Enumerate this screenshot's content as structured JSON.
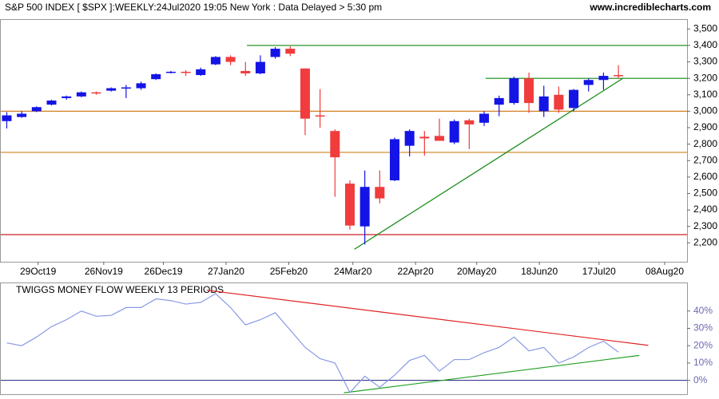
{
  "chart_data": [
    {
      "type": "candlestick",
      "title": "S&P 500 INDEX [ $SPX ]:WEEKLY:24Jul2020 19:05 New York : Data Delayed > 5:30 pm",
      "subtitle": "www.incrediblecharts.com",
      "open": [
        2940,
        2965,
        3000,
        3040,
        3080,
        3090,
        3115,
        3125,
        3140,
        3140,
        3195,
        3235,
        3240,
        3220,
        3285,
        3330,
        3245,
        3230,
        3330,
        3380,
        3260,
        2975,
        2880,
        2560,
        2300,
        2540,
        2580,
        2790,
        2845,
        2850,
        2810,
        2945,
        2930,
        3040,
        3050,
        3200,
        3000,
        3100,
        3020,
        3160,
        3190,
        3220
      ],
      "high": [
        2995,
        3000,
        3030,
        3070,
        3095,
        3120,
        3120,
        3145,
        3160,
        3180,
        3230,
        3245,
        3250,
        3265,
        3335,
        3340,
        3300,
        3340,
        3390,
        3395,
        3260,
        3135,
        2890,
        2580,
        2640,
        2640,
        2840,
        2890,
        2880,
        2955,
        2950,
        2955,
        3000,
        3095,
        3210,
        3235,
        3155,
        3150,
        3135,
        3200,
        3235,
        3280
      ],
      "low": [
        2895,
        2960,
        2995,
        3035,
        3070,
        3085,
        3100,
        3120,
        3080,
        3130,
        3190,
        3230,
        3215,
        3215,
        3280,
        3280,
        3215,
        3225,
        3320,
        3335,
        2855,
        2900,
        2480,
        2280,
        2190,
        2440,
        2575,
        2725,
        2730,
        2820,
        2800,
        2770,
        2910,
        2970,
        3040,
        2990,
        2965,
        2990,
        3000,
        3120,
        3130,
        3200
      ],
      "close": [
        2975,
        2985,
        3025,
        3065,
        3090,
        3115,
        3110,
        3140,
        3145,
        3170,
        3225,
        3240,
        3235,
        3255,
        3330,
        3300,
        3230,
        3300,
        3380,
        3350,
        2955,
        2970,
        2720,
        2305,
        2540,
        2470,
        2830,
        2880,
        2835,
        2820,
        2940,
        2920,
        2985,
        3080,
        3200,
        3050,
        3090,
        3010,
        3130,
        3190,
        3215,
        3215
      ],
      "up_color": "#1414e6",
      "down_color": "#f03c3c",
      "xlim": [
        -0.4,
        45.6
      ],
      "xticks": [
        {
          "value": 2.1,
          "label": "29Oct19"
        },
        {
          "value": 6.5,
          "label": "26Nov19"
        },
        {
          "value": 10.5,
          "label": "26Dec19"
        },
        {
          "value": 14.7,
          "label": "27Jan20"
        },
        {
          "value": 18.9,
          "label": "25Feb20"
        },
        {
          "value": 23.2,
          "label": "24Mar20"
        },
        {
          "value": 27.4,
          "label": "22Apr20"
        },
        {
          "value": 31.5,
          "label": "20May20"
        },
        {
          "value": 35.7,
          "label": "18Jun20"
        },
        {
          "value": 39.7,
          "label": "17Jul20"
        },
        {
          "value": 44.1,
          "label": "08Aug20"
        }
      ],
      "ylim": [
        2085,
        3555
      ],
      "yticks": [
        {
          "value": 2200,
          "label": "2,200"
        },
        {
          "value": 2300,
          "label": "2,300"
        },
        {
          "value": 2400,
          "label": "2,400"
        },
        {
          "value": 2500,
          "label": "2,500"
        },
        {
          "value": 2600,
          "label": "2,600"
        },
        {
          "value": 2700,
          "label": "2,700"
        },
        {
          "value": 2800,
          "label": "2,800"
        },
        {
          "value": 2900,
          "label": "2,900"
        },
        {
          "value": 3000,
          "label": "3,000"
        },
        {
          "value": 3100,
          "label": "3,100"
        },
        {
          "value": 3200,
          "label": "3,200"
        },
        {
          "value": 3300,
          "label": "3,300"
        },
        {
          "value": 3400,
          "label": "3,400"
        },
        {
          "value": 3500,
          "label": "3,500"
        }
      ],
      "lines": [
        {
          "x": [
            16.1,
            45.6
          ],
          "y": [
            3400,
            3400
          ],
          "color": "#118811"
        },
        {
          "x": [
            32.1,
            45.6
          ],
          "y": [
            3200,
            3200
          ],
          "color": "#118811"
        },
        {
          "x": [
            -0.4,
            45.6
          ],
          "y": [
            3000,
            3000
          ],
          "color": "#d08020"
        },
        {
          "x": [
            -0.4,
            45.6
          ],
          "y": [
            2750,
            2750
          ],
          "color": "#d08020"
        },
        {
          "x": [
            -0.4,
            45.6
          ],
          "y": [
            2250,
            2250
          ],
          "color": "#cc2020"
        },
        {
          "x": [
            23.3,
            41.3
          ],
          "y": [
            2161,
            3200
          ],
          "color": "#118811"
        }
      ]
    },
    {
      "type": "line",
      "title": "TWIGGS MONEY FLOW WEEKLY 13 PERIODS",
      "values": [
        21.6,
        20,
        25,
        31,
        35,
        40,
        37,
        37.5,
        42,
        42,
        47,
        46,
        44,
        45,
        50,
        42,
        32,
        35,
        39,
        29,
        19,
        12.5,
        10,
        -7,
        2.4,
        -4,
        3,
        11.5,
        14.4,
        5.3,
        12,
        12,
        16,
        19,
        25,
        17,
        19,
        10,
        13.5,
        19,
        22.6,
        16.3
      ],
      "color": "#8a9ae6",
      "xlim": [
        -0.4,
        45.6
      ],
      "ylim": [
        -8,
        56
      ],
      "yticks": [
        {
          "value": 0,
          "label": "0%"
        },
        {
          "value": 10,
          "label": "10%"
        },
        {
          "value": 20,
          "label": "20%"
        },
        {
          "value": 30,
          "label": "30%"
        },
        {
          "value": 40,
          "label": "40%"
        }
      ],
      "zero_line_color": "#202080",
      "lines": [
        {
          "x": [
            13.4,
            43.0
          ],
          "y": [
            52,
            20.2
          ],
          "color": "#e02020"
        },
        {
          "x": [
            22.6,
            42.4
          ],
          "y": [
            -7.2,
            14.4
          ],
          "color": "#20a020"
        }
      ]
    }
  ]
}
